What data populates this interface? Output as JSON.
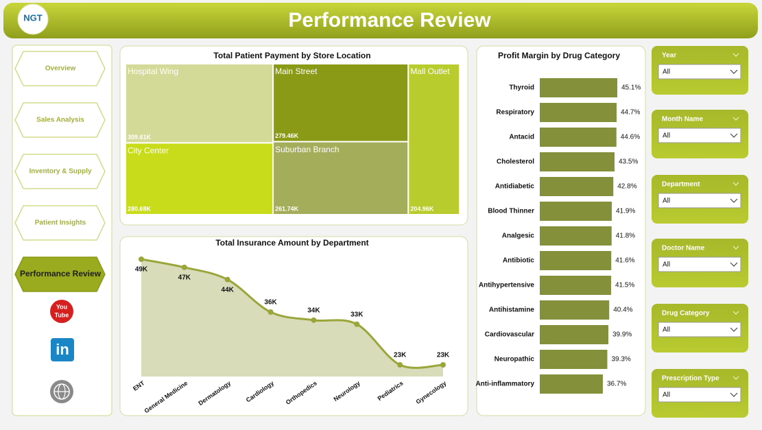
{
  "header": {
    "logo": "NGT",
    "title": "Performance Review"
  },
  "nav": {
    "items": [
      "Overview",
      "Sales Analysis",
      "Inventory & Supply",
      "Patient Insights",
      "Performance Review"
    ],
    "active": 4,
    "youtube": [
      "You",
      "Tube"
    ],
    "linkedin": "in"
  },
  "filters": [
    {
      "label": "Year",
      "value": "All"
    },
    {
      "label": "Month Name",
      "value": "All"
    },
    {
      "label": "Department",
      "value": "All"
    },
    {
      "label": "Doctor Name",
      "value": "All"
    },
    {
      "label": "Drug Category",
      "value": "All"
    },
    {
      "label": "Prescription Type",
      "value": "All"
    }
  ],
  "chart_data": [
    {
      "type": "treemap",
      "title": "Total Patient Payment by Store Location",
      "categories": [
        "Hospital Wing",
        "City Center",
        "Main Street",
        "Suburban Branch",
        "Mall Outlet"
      ],
      "values": [
        309610,
        280680,
        279460,
        261740,
        204960
      ],
      "value_labels": [
        "309.61K",
        "280.68K",
        "279.46K",
        "261.74K",
        "204.96K"
      ],
      "colors": [
        "#d3da97",
        "#c8dc1c",
        "#8a9a17",
        "#a4ad5a",
        "#b8cc2e"
      ]
    },
    {
      "type": "area",
      "title": "Total Insurance Amount by Department",
      "categories": [
        "ENT",
        "General Medicine",
        "Dermatology",
        "Cardiology",
        "Orthopedics",
        "Neurology",
        "Pediatrics",
        "Gynecology"
      ],
      "values": [
        49000,
        47000,
        44000,
        36000,
        34000,
        33000,
        23000,
        23000
      ],
      "value_labels": [
        "49K",
        "47K",
        "44K",
        "36K",
        "34K",
        "33K",
        "23K",
        "23K"
      ],
      "color": "#9aa63a",
      "fill": "#d8dcb8"
    },
    {
      "type": "hbar",
      "title": "Profit Margin by Drug Category",
      "categories": [
        "Thyroid",
        "Respiratory",
        "Antacid",
        "Cholesterol",
        "Antidiabetic",
        "Blood Thinner",
        "Analgesic",
        "Antibiotic",
        "Antihypertensive",
        "Antihistamine",
        "Cardiovascular",
        "Neuropathic",
        "Anti-inflammatory"
      ],
      "values": [
        45.1,
        44.7,
        44.6,
        43.5,
        42.8,
        41.9,
        41.8,
        41.6,
        41.5,
        40.4,
        39.9,
        39.3,
        36.7
      ],
      "value_labels": [
        "45.1%",
        "44.7%",
        "44.6%",
        "43.5%",
        "42.8%",
        "41.9%",
        "41.8%",
        "41.6%",
        "41.5%",
        "40.4%",
        "39.9%",
        "39.3%",
        "36.7%"
      ],
      "color": "#84913a"
    }
  ]
}
